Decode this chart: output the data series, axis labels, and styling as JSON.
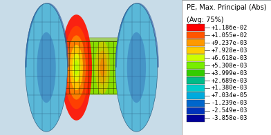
{
  "title_line1": "PE, Max. Principal (Abs)",
  "title_line2": "(Avg: 75%)",
  "colorbar_values": [
    "+1.186e-02",
    "+1.055e-02",
    "+9.237e-03",
    "+7.928e-03",
    "+6.618e-03",
    "+5.308e-03",
    "+3.999e-03",
    "+2.689e-03",
    "+1.380e-03",
    "+7.034e-05",
    "-1.239e-03",
    "-2.549e-03",
    "-3.858e-03"
  ],
  "colorbar_colors": [
    "#ff0000",
    "#ff5500",
    "#ff9900",
    "#ffcc00",
    "#ccff00",
    "#77ee00",
    "#33cc00",
    "#00bb88",
    "#00cccc",
    "#00aadd",
    "#0066cc",
    "#0033bb",
    "#000099"
  ],
  "bg_color": "#c8dce8",
  "legend_bg": "#e8e8e8",
  "text_color": "#000000",
  "disc_face_color": "#5ab8d8",
  "disc_edge_color": "#336688",
  "disc_dark_color": "#2255aa",
  "neck_green": "#88dd00",
  "neck_yellow": "#ccee00",
  "neck_lime": "#aae800",
  "hot_red": "#ee1100",
  "hot_orange": "#ff6600",
  "hot_yellow": "#ffee00",
  "title_fontsize": 7.0,
  "tick_fontsize": 6.2
}
